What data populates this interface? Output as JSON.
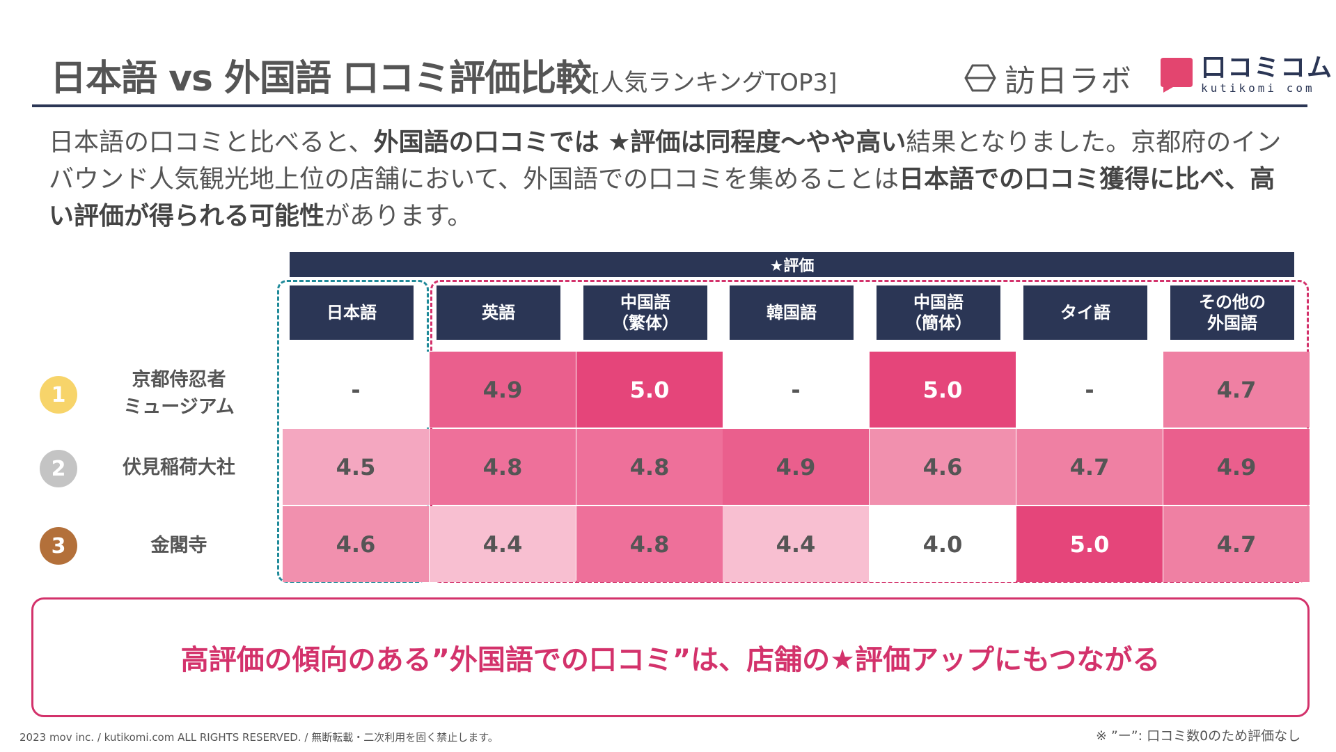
{
  "header": {
    "title": "日本語 vs 外国語 口コミ評価比較",
    "subtitle": "[人気ランキングTOP3]",
    "logo1_text": "訪日ラボ",
    "logo2_text": "口コミコム",
    "logo2_sub": "kutikomi com"
  },
  "intro": {
    "p1": "日本語の口コミと比べると、",
    "b1": "外国語の口コミでは ★評価は同程度～やや高い",
    "p2": "結果となりました。京都府のインバウンド人気観光地上位の店舗において、外国語での口コミを集めることは",
    "b2": "日本語での口コミ獲得に比べ、高い評価が得られる可能性",
    "p3": "があります。"
  },
  "table": {
    "band_label": "★評価",
    "columns": [
      "日本語",
      "英語",
      "中国語\n（繁体）",
      "韓国語",
      "中国語\n（簡体）",
      "タイ語",
      "その他の\n外国語"
    ],
    "rows": [
      {
        "rank": "1",
        "name": "京都侍忍者\nミュージアム",
        "values": [
          "-",
          "4.9",
          "5.0",
          "-",
          "5.0",
          "-",
          "4.7"
        ]
      },
      {
        "rank": "2",
        "name": "伏見稲荷大社",
        "values": [
          "4.5",
          "4.8",
          "4.8",
          "4.9",
          "4.6",
          "4.7",
          "4.9"
        ]
      },
      {
        "rank": "3",
        "name": "金閣寺",
        "values": [
          "4.6",
          "4.4",
          "4.8",
          "4.4",
          "4.0",
          "5.0",
          "4.7"
        ]
      }
    ]
  },
  "conclusion": "高評価の傾向のある”外国語での口コミ”は、店舗の★評価アップにもつながる",
  "footer": {
    "copyright": "2023 mov inc. / kutikomi.com ALL RIGHTS RESERVED. / 無断転載・二次利用を固く禁止します。",
    "note": "※ ”ー”: 口コミ数0のため評価なし"
  },
  "colors": {
    "navy": "#2b3655",
    "pink": "#d3326b",
    "teal": "#1f8a99",
    "gold": "#f7d46a",
    "silver": "#c4c4c4",
    "bronze": "#b3703a"
  }
}
